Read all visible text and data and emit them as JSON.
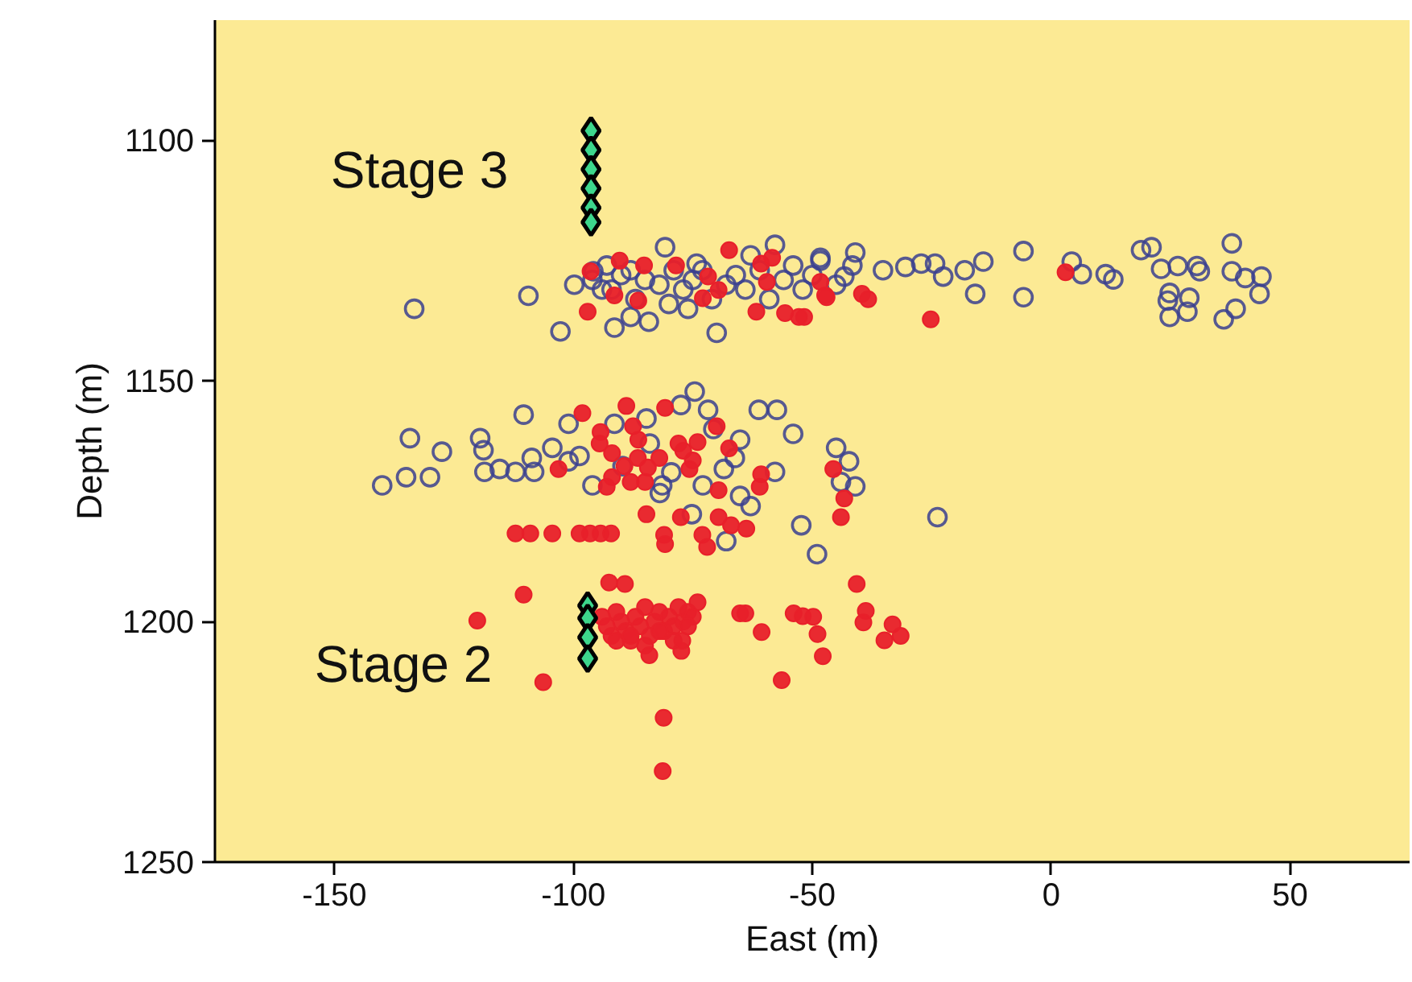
{
  "chart_data": {
    "type": "scatter",
    "xlabel": "East (m)",
    "ylabel": "Depth (m)",
    "xlim": [
      -175,
      75
    ],
    "ylim": [
      1250,
      1075
    ],
    "xticks": [
      -150,
      -100,
      -50,
      0,
      50
    ],
    "yticks": [
      1100,
      1150,
      1200,
      1250
    ],
    "grid": false,
    "annotations": [
      "Stage 3",
      "Stage 2"
    ],
    "series": [
      {
        "color": "#3a3f8f",
        "marker": "circle",
        "x": [
          -133.3,
          -109.4,
          -99.8,
          -102.7,
          -91.4,
          -88,
          -84.2,
          -80.8,
          -74.2,
          -70,
          -62.9,
          -57.8,
          -48.3,
          -48.3,
          -41,
          -41.6,
          -43.3,
          -35.2,
          -30.5,
          -27.2,
          -24.3,
          -22.6,
          -18.1,
          -14.2,
          -15.9,
          -5.8,
          -5.8,
          4.3,
          6.4,
          11.4,
          13,
          18.8,
          21,
          23,
          26.5,
          30.5,
          31.1,
          37.8,
          37.8,
          40.6,
          44,
          43.6,
          24.8,
          24.4,
          28.9,
          28.5,
          24.8,
          38.6,
          36.1,
          -95.8,
          -93,
          -90,
          -88,
          -85,
          -82,
          -79,
          -77,
          -75,
          -73,
          -71,
          -68,
          -66,
          -64,
          -61,
          -59,
          -56,
          -54,
          -52,
          -50,
          -45,
          -92,
          -87,
          -80,
          -76,
          -96,
          -94,
          -140,
          -135,
          -130,
          -134.2,
          -127.5,
          -119.5,
          -118.8,
          -118.6,
          -115.4,
          -112.1,
          -110.4,
          -108.2,
          -108.7,
          -104.4,
          -101,
          -101,
          -98.7,
          -96,
          -91.4,
          -84.7,
          -84,
          -81.4,
          -79.5,
          -77.5,
          -74.6,
          -71.8,
          -70.7,
          -68.5,
          -72.9,
          -65.1,
          -66.2,
          -61.2,
          -57.4,
          -54,
          -57.8,
          -65.1,
          -62.9,
          -68,
          -75.2,
          -52.3,
          -49,
          -45,
          -42.3,
          -44,
          -41,
          -23.8,
          -81.9,
          -89.7
        ],
        "values": [
          1135,
          1132.3,
          1130,
          1139.7,
          1138.9,
          1136.7,
          1137.7,
          1122.2,
          1125.6,
          1140,
          1123.9,
          1121.7,
          1125,
          1124.4,
          1123.3,
          1126,
          1128.3,
          1127,
          1126.3,
          1125.6,
          1125.6,
          1128.3,
          1127,
          1125.2,
          1131.9,
          1123,
          1132.6,
          1125.2,
          1127.8,
          1127.8,
          1128.9,
          1122.8,
          1122.2,
          1126.7,
          1126.1,
          1126.1,
          1127.2,
          1121.4,
          1127.2,
          1128.6,
          1128.3,
          1131.9,
          1131.7,
          1133.3,
          1132.7,
          1135.6,
          1136.7,
          1135,
          1137.2,
          1127.2,
          1126,
          1128,
          1127,
          1129,
          1130,
          1127,
          1131,
          1129,
          1127,
          1133,
          1130,
          1128,
          1131,
          1127,
          1133,
          1129,
          1126,
          1131,
          1128,
          1130,
          1131,
          1133,
          1134,
          1135,
          1129,
          1131,
          1171.7,
          1170,
          1170,
          1161.9,
          1164.7,
          1161.9,
          1164.4,
          1168.9,
          1168.3,
          1168.9,
          1157,
          1168.9,
          1166,
          1163.9,
          1158.9,
          1166.7,
          1165.6,
          1171.7,
          1158.9,
          1157.8,
          1163,
          1171.7,
          1169,
          1155,
          1152.2,
          1156,
          1160,
          1168.3,
          1171.7,
          1162.2,
          1166,
          1156,
          1156,
          1161,
          1168.9,
          1173.9,
          1176,
          1183.3,
          1177.7,
          1180,
          1186,
          1163.9,
          1166.7,
          1171,
          1171.9,
          1178.3,
          1173.3,
          1167.7
        ]
      },
      {
        "color": "#e8202a",
        "marker": "circle",
        "x": [
          -48.3,
          -47,
          -39.6,
          -38.3,
          -25.2,
          3,
          -51.7,
          -97,
          -91.4,
          -90.3,
          -86.4,
          -85.2,
          -78.5,
          -72.9,
          -69.6,
          -67.4,
          -60.7,
          -58.4,
          -61.7,
          -55.7,
          -52.8,
          -47.3,
          -59.5,
          -96.4,
          -71.8,
          -98.1,
          -88.9,
          -87.5,
          -86.4,
          -94.3,
          -94.5,
          -91.9,
          -89.3,
          -91.9,
          -93,
          -88,
          -86.5,
          -84.4,
          -82,
          -85,
          -80.8,
          -78,
          -77,
          -75,
          -74,
          -75.7,
          -70,
          -67.4,
          -69.6,
          -60.7,
          -61,
          -103.1,
          -45.6,
          -43.3,
          -44,
          -84.7,
          -77.5,
          -69.6,
          -67,
          -63.8,
          -81,
          -80.8,
          -73,
          -72,
          -112.1,
          -109,
          -104.4,
          -98.7,
          -96.5,
          -94.3,
          -92.1,
          -110.4,
          -120.1,
          -106.3,
          -92.5,
          -89.2,
          -94,
          -93,
          -92,
          -91,
          -90,
          -89,
          -88,
          -87,
          -86,
          -85,
          -84,
          -83,
          -82,
          -81,
          -80,
          -79,
          -78,
          -77,
          -76,
          -75,
          -74,
          -91,
          -88,
          -85,
          -82,
          -79,
          -76,
          -84.1,
          -77.4,
          -77.2,
          -81.1,
          -81.3,
          -65.1,
          -64,
          -60.6,
          -53.9,
          -52,
          -49.8,
          -48.9,
          -47.8,
          -56.4,
          -40.7,
          -38.8,
          -39.3,
          -33.2,
          -34.9,
          -31.5
        ],
        "values": [
          1129.4,
          1132.6,
          1131.9,
          1133,
          1137.2,
          1127.4,
          1136.7,
          1135.6,
          1132.2,
          1125,
          1133.3,
          1126,
          1126,
          1132.8,
          1131.1,
          1122.8,
          1125.6,
          1124.4,
          1135.6,
          1135.9,
          1136.7,
          1132.2,
          1129.4,
          1127.2,
          1128.3,
          1156.7,
          1155.2,
          1159.4,
          1162.2,
          1160.6,
          1163,
          1165,
          1167.7,
          1170,
          1172,
          1171,
          1166,
          1168,
          1166,
          1171,
          1155.6,
          1163,
          1164.5,
          1166.5,
          1162.7,
          1168.3,
          1159.4,
          1164,
          1172.7,
          1169.4,
          1172,
          1168.3,
          1168.3,
          1174.4,
          1178.3,
          1177.7,
          1178.3,
          1178.3,
          1180,
          1180.7,
          1182,
          1183.9,
          1182,
          1184.5,
          1181.7,
          1181.7,
          1181.7,
          1181.7,
          1181.7,
          1181.7,
          1181.7,
          1194.4,
          1199.8,
          1212.6,
          1191.9,
          1192.2,
          1199,
          1201,
          1203,
          1198,
          1200,
          1202,
          1204,
          1199,
          1201,
          1197,
          1203,
          1200,
          1198,
          1202,
          1199,
          1201,
          1197,
          1200,
          1198,
          1199,
          1196,
          1204,
          1203,
          1205,
          1202,
          1204,
          1201,
          1207,
          1206.1,
          1204,
          1220,
          1231.1,
          1198.3,
          1198.3,
          1202.2,
          1198.3,
          1198.9,
          1199,
          1202.6,
          1207.2,
          1212.2,
          1192.2,
          1197.8,
          1200.2,
          1200.6,
          1203.9,
          1203
        ]
      },
      {
        "color": "#3dd68c",
        "marker": "diamond",
        "x": [
          -96.3,
          -96.3,
          -96.3,
          -96.3,
          -96.3,
          -96.3,
          -97,
          -97,
          -97,
          -97
        ],
        "values": [
          1098,
          1102,
          1106,
          1110,
          1114,
          1117,
          1196.7,
          1199.3,
          1203.3,
          1207.7
        ]
      }
    ]
  }
}
